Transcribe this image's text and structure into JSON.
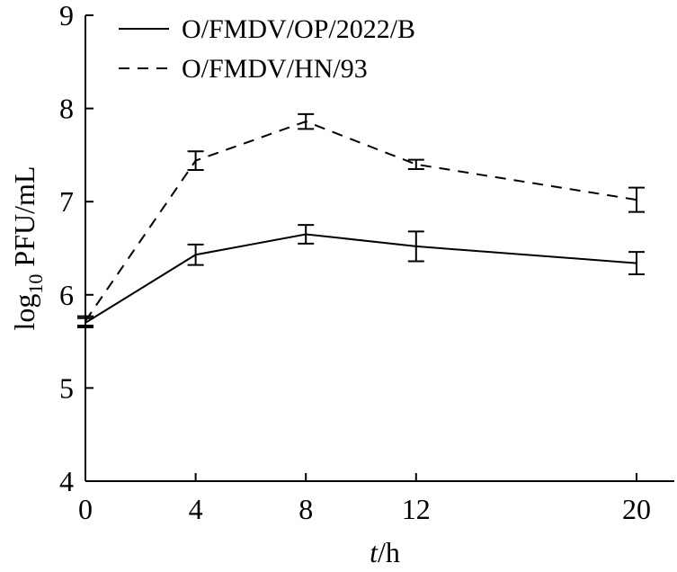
{
  "chart_data": {
    "type": "line",
    "x": [
      0,
      4,
      8,
      12,
      20
    ],
    "xticks": [
      "0",
      "4",
      "8",
      "12",
      "20"
    ],
    "yticks": [
      "4",
      "5",
      "6",
      "7",
      "8",
      "9"
    ],
    "xlim": [
      0,
      21.2
    ],
    "ylim": [
      4,
      9
    ],
    "xlabel": {
      "italic": "t",
      "rest": "/h"
    },
    "ylabel": {
      "main": "log",
      "sub": "10",
      "rest": " PFU/mL"
    },
    "legend_position": "top-left",
    "grid": false,
    "series": [
      {
        "name": "O/FMDV/OP/2022/B",
        "style": "solid",
        "color": "#000000",
        "values": [
          5.7,
          6.43,
          6.65,
          6.52,
          6.34
        ],
        "error": [
          0.05,
          0.11,
          0.1,
          0.16,
          0.12
        ]
      },
      {
        "name": "O/FMDV/HN/93",
        "style": "dashed",
        "color": "#000000",
        "values": [
          5.72,
          7.44,
          7.86,
          7.4,
          7.02
        ],
        "error": [
          0.05,
          0.1,
          0.08,
          0.05,
          0.13
        ]
      }
    ]
  }
}
